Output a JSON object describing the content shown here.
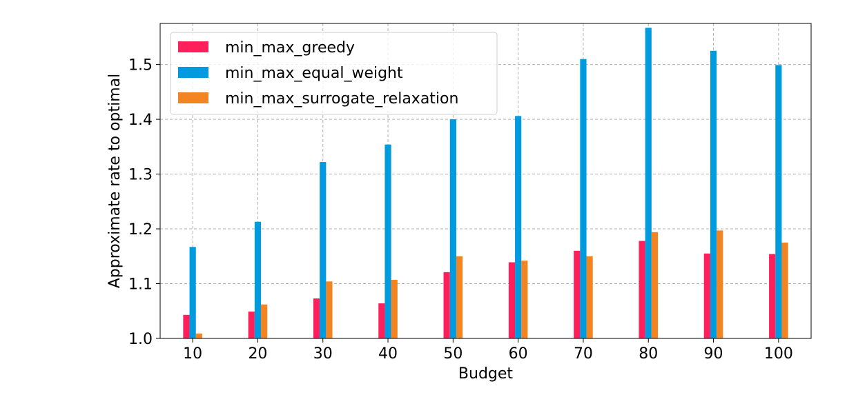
{
  "chart_data": {
    "type": "bar",
    "title": "",
    "xlabel": "Budget",
    "ylabel": "Approximate rate to optimal",
    "categories": [
      "10",
      "20",
      "30",
      "40",
      "50",
      "60",
      "70",
      "80",
      "90",
      "100"
    ],
    "ylim": [
      1.0,
      1.575
    ],
    "yticks": [
      "1.0",
      "1.1",
      "1.2",
      "1.3",
      "1.4",
      "1.5"
    ],
    "grid": true,
    "legend_position": "top-left",
    "series": [
      {
        "name": "min_max_greedy",
        "color": "#ff1f5b",
        "values": [
          1.043,
          1.049,
          1.073,
          1.064,
          1.121,
          1.139,
          1.16,
          1.178,
          1.155,
          1.154
        ]
      },
      {
        "name": "min_max_equal_weight",
        "color": "#009ade",
        "values": [
          1.167,
          1.213,
          1.322,
          1.354,
          1.4,
          1.406,
          1.51,
          1.567,
          1.525,
          1.499
        ]
      },
      {
        "name": "min_max_surrogate_relaxation",
        "color": "#f28522",
        "values": [
          1.009,
          1.062,
          1.104,
          1.107,
          1.15,
          1.142,
          1.15,
          1.194,
          1.197,
          1.175
        ]
      }
    ]
  }
}
